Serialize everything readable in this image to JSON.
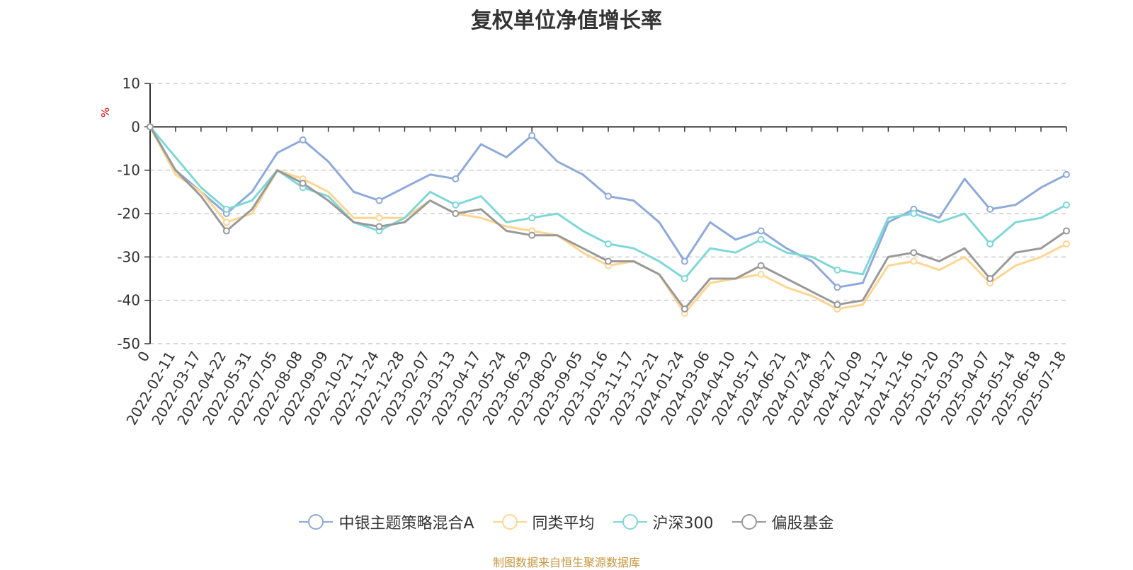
{
  "chart_data": {
    "type": "line",
    "title": "复权单位净值增长率",
    "ylabel": "%",
    "ylim": [
      -50,
      10
    ],
    "yticks": [
      10,
      0,
      -10,
      -20,
      -30,
      -40,
      -50
    ],
    "grid": true,
    "legend_position": "bottom",
    "x": [
      "0",
      "2022-02-11",
      "2022-03-17",
      "2022-04-22",
      "2022-05-31",
      "2022-07-05",
      "2022-08-08",
      "2022-09-09",
      "2022-10-21",
      "2022-11-24",
      "2022-12-28",
      "2023-02-07",
      "2023-03-13",
      "2023-04-17",
      "2023-05-24",
      "2023-06-29",
      "2023-08-02",
      "2023-09-05",
      "2023-10-16",
      "2023-11-17",
      "2023-12-21",
      "2024-01-24",
      "2024-03-06",
      "2024-04-10",
      "2024-05-17",
      "2024-06-21",
      "2024-07-24",
      "2024-08-27",
      "2024-10-09",
      "2024-11-12",
      "2024-12-16",
      "2025-01-20",
      "2025-03-03",
      "2025-04-07",
      "2025-05-14",
      "2025-06-18",
      "2025-07-18"
    ],
    "series": [
      {
        "name": "中银主题策略混合A",
        "color": "#8eaadb",
        "values": [
          0,
          -10,
          -15,
          -20,
          -15,
          -6,
          -3,
          -8,
          -15,
          -17,
          -14,
          -11,
          -12,
          -4,
          -7,
          -2,
          -8,
          -11,
          -16,
          -17,
          -22,
          -31,
          -22,
          -26,
          -24,
          -28,
          -31,
          -37,
          -36,
          -22,
          -19,
          -21,
          -12,
          -19,
          -18,
          -14,
          -11
        ]
      },
      {
        "name": "同类平均",
        "color": "#ffd591",
        "values": [
          0,
          -11,
          -15,
          -22,
          -20,
          -10,
          -12,
          -15,
          -21,
          -21,
          -21,
          -17,
          -20,
          -21,
          -23,
          -24,
          -25,
          -29,
          -32,
          -31,
          -34,
          -43,
          -36,
          -35,
          -34,
          -37,
          -39,
          -42,
          -41,
          -32,
          -31,
          -33,
          -30,
          -36,
          -32,
          -30,
          -27
        ]
      },
      {
        "name": "沪深300",
        "color": "#7fd7d7",
        "values": [
          0,
          -7,
          -14,
          -19,
          -17,
          -10,
          -14,
          -16,
          -22,
          -24,
          -21,
          -15,
          -18,
          -16,
          -22,
          -21,
          -20,
          -24,
          -27,
          -28,
          -31,
          -35,
          -28,
          -29,
          -26,
          -29,
          -30,
          -33,
          -34,
          -21,
          -20,
          -22,
          -20,
          -27,
          -22,
          -21,
          -18
        ]
      },
      {
        "name": "偏股基金",
        "color": "#999999",
        "values": [
          0,
          -10,
          -16,
          -24,
          -19,
          -10,
          -13,
          -17,
          -22,
          -23,
          -22,
          -17,
          -20,
          -19,
          -24,
          -25,
          -25,
          -28,
          -31,
          -31,
          -34,
          -42,
          -35,
          -35,
          -32,
          -35,
          -38,
          -41,
          -40,
          -30,
          -29,
          -31,
          -28,
          -35,
          -29,
          -28,
          -24
        ]
      }
    ]
  },
  "footer": "制图数据来自恒生聚源数据库"
}
